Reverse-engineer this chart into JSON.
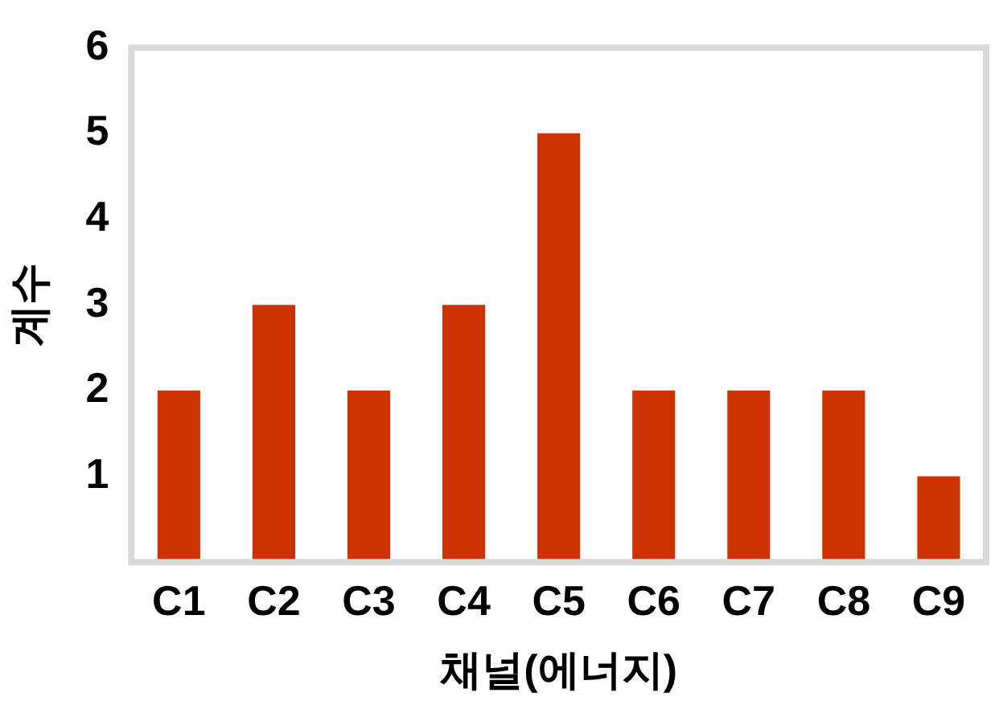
{
  "chart_data": {
    "type": "bar",
    "xlabel": "채널(에너지)",
    "ylabel": "계수",
    "categories": [
      "C1",
      "C2",
      "C3",
      "C4",
      "C5",
      "C6",
      "C7",
      "C8",
      "C9"
    ],
    "values": [
      2,
      3,
      2,
      3,
      5,
      2,
      2,
      2,
      1
    ],
    "color": "#cc3300",
    "ylim": [
      0,
      6
    ],
    "yticks": [
      1,
      2,
      3,
      4,
      5,
      6
    ],
    "grid": false,
    "legend": false
  }
}
